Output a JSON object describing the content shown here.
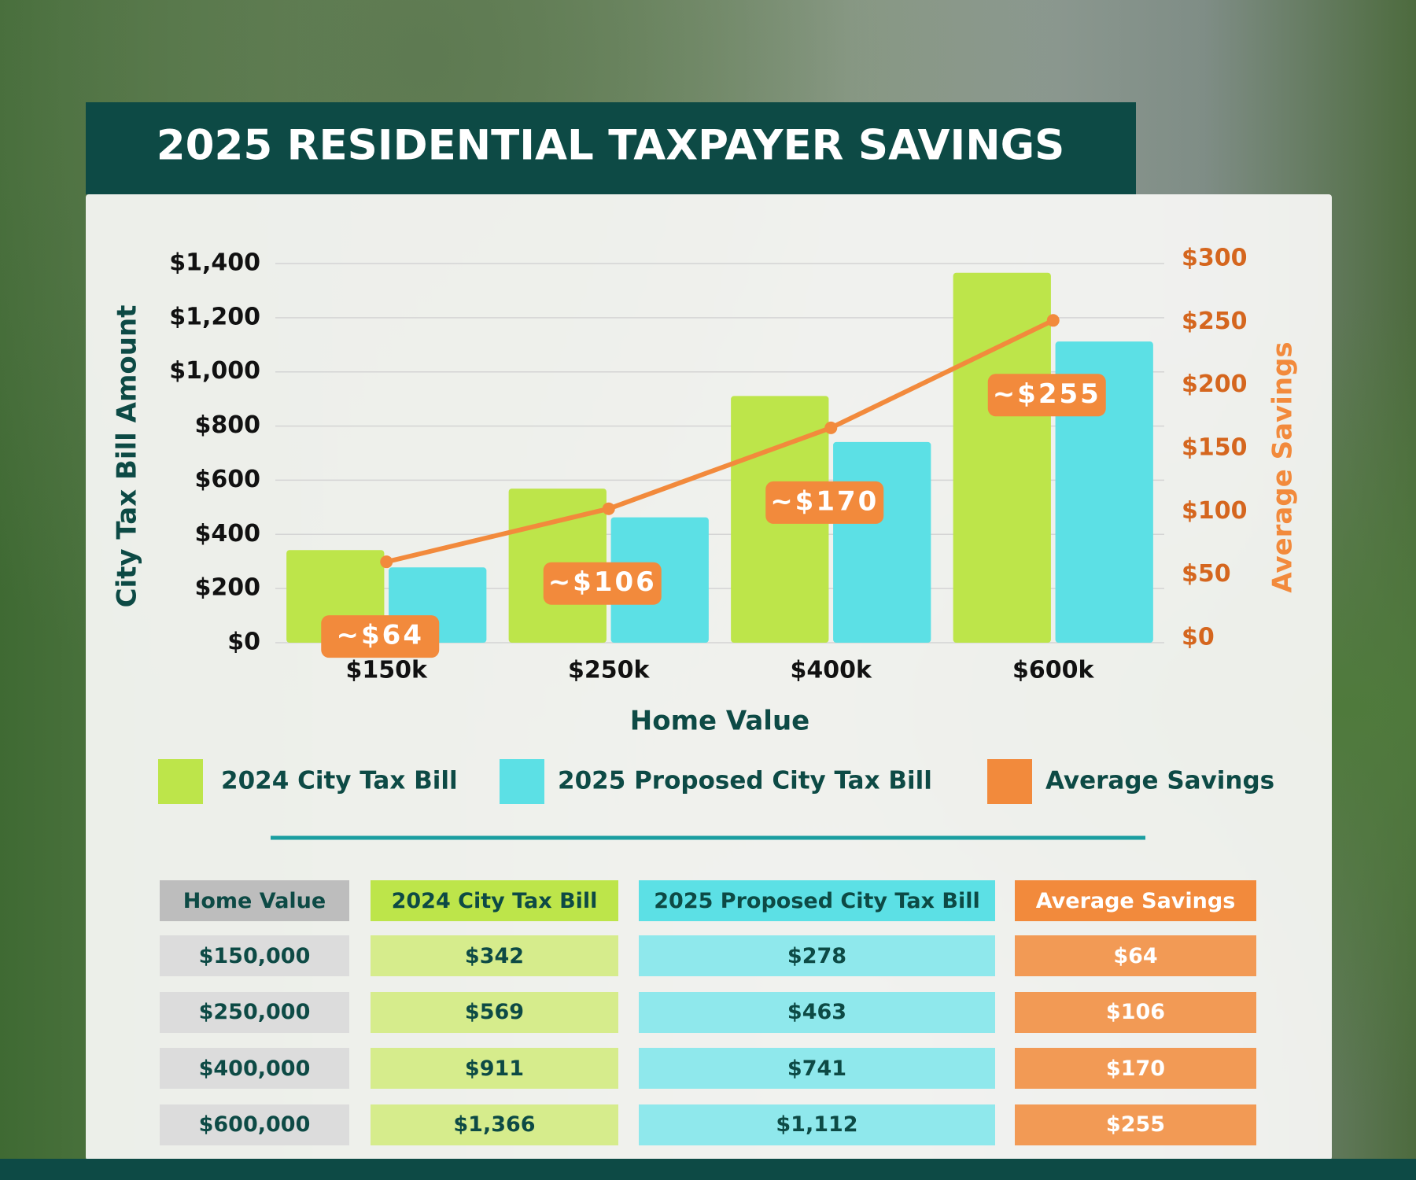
{
  "title": "2025 RESIDENTIAL TAXPAYER SAVINGS",
  "chart_data": {
    "type": "bar",
    "categories": [
      "$150k",
      "$250k",
      "$400k",
      "$600k"
    ],
    "series": [
      {
        "name": "2024 City Tax Bill",
        "color": "#bde54a",
        "values": [
          342,
          569,
          911,
          1366
        ]
      },
      {
        "name": "2025 Proposed City Tax Bill",
        "color": "#5ce0e5",
        "values": [
          278,
          463,
          741,
          1112
        ]
      },
      {
        "name": "Average Savings",
        "color": "#f28a3c",
        "type": "line",
        "axis": "y2",
        "values": [
          64,
          106,
          170,
          255
        ],
        "value_labels": [
          "~$64",
          "~$106",
          "~$170",
          "~$255"
        ]
      }
    ],
    "xlabel": "Home Value",
    "ylabel": "City Tax Bill Amount",
    "y2label": "Average Savings",
    "ylim": [
      0,
      1400
    ],
    "yticks": [
      {
        "value": 0,
        "label": "$0"
      },
      {
        "value": 200,
        "label": "$200"
      },
      {
        "value": 400,
        "label": "$400"
      },
      {
        "value": 600,
        "label": "$600"
      },
      {
        "value": 800,
        "label": "$800"
      },
      {
        "value": 1000,
        "label": "$1,000"
      },
      {
        "value": 1200,
        "label": "$1,200"
      },
      {
        "value": 1400,
        "label": "$1,400"
      }
    ],
    "y2lim": [
      0,
      300
    ],
    "y2ticks": [
      {
        "value": 0,
        "label": "$0"
      },
      {
        "value": 50,
        "label": "$50"
      },
      {
        "value": 100,
        "label": "$100"
      },
      {
        "value": 150,
        "label": "$150"
      },
      {
        "value": 200,
        "label": "$200"
      },
      {
        "value": 250,
        "label": "$250"
      },
      {
        "value": 300,
        "label": "$300"
      }
    ],
    "grid": true,
    "legend": "bottom"
  },
  "table": {
    "header": [
      "Home Value",
      "2024 City Tax Bill",
      "2025 Proposed City Tax Bill",
      "Average Savings"
    ],
    "rows": [
      [
        "$150,000",
        "$342",
        "$278",
        "$64"
      ],
      [
        "$250,000",
        "$569",
        "$463",
        "$106"
      ],
      [
        "$400,000",
        "$911",
        "$741",
        "$170"
      ],
      [
        "$600,000",
        "$1,366",
        "$1,112",
        "$255"
      ]
    ]
  }
}
